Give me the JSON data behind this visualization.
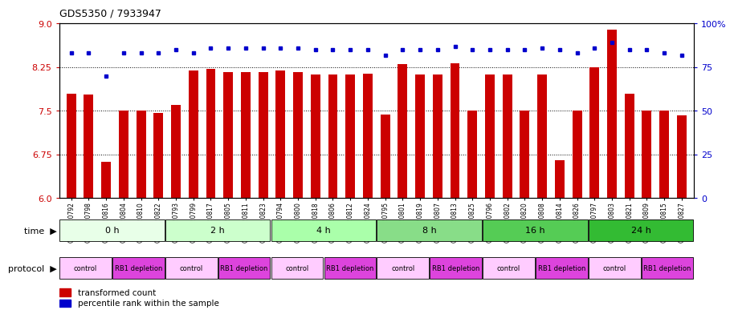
{
  "title": "GDS5350 / 7933947",
  "samples": [
    "GSM1220792",
    "GSM1220798",
    "GSM1220816",
    "GSM1220804",
    "GSM1220810",
    "GSM1220822",
    "GSM1220793",
    "GSM1220799",
    "GSM1220817",
    "GSM1220805",
    "GSM1220811",
    "GSM1220823",
    "GSM1220794",
    "GSM1220800",
    "GSM1220818",
    "GSM1220806",
    "GSM1220812",
    "GSM1220824",
    "GSM1220795",
    "GSM1220801",
    "GSM1220819",
    "GSM1220807",
    "GSM1220813",
    "GSM1220825",
    "GSM1220796",
    "GSM1220802",
    "GSM1220820",
    "GSM1220808",
    "GSM1220814",
    "GSM1220826",
    "GSM1220797",
    "GSM1220803",
    "GSM1220821",
    "GSM1220809",
    "GSM1220815",
    "GSM1220827"
  ],
  "bar_values": [
    7.8,
    7.78,
    6.63,
    7.5,
    7.5,
    7.47,
    7.6,
    8.19,
    8.22,
    8.17,
    8.17,
    8.17,
    8.19,
    8.16,
    8.12,
    8.12,
    8.12,
    8.14,
    7.44,
    8.3,
    8.12,
    8.12,
    8.32,
    7.5,
    8.12,
    8.12,
    7.5,
    8.12,
    6.65,
    7.5,
    8.25,
    8.9,
    7.8,
    7.5,
    7.5,
    7.42
  ],
  "percentile_values": [
    83,
    83,
    70,
    83,
    83,
    83,
    85,
    83,
    86,
    86,
    86,
    86,
    86,
    86,
    85,
    85,
    85,
    85,
    82,
    85,
    85,
    85,
    87,
    85,
    85,
    85,
    85,
    86,
    85,
    83,
    86,
    89,
    85,
    85,
    83,
    82
  ],
  "time_groups": [
    {
      "label": "0 h",
      "start": 0,
      "end": 6,
      "color": "#e8ffe8"
    },
    {
      "label": "2 h",
      "start": 6,
      "end": 12,
      "color": "#ccffcc"
    },
    {
      "label": "4 h",
      "start": 12,
      "end": 18,
      "color": "#aaffaa"
    },
    {
      "label": "8 h",
      "start": 18,
      "end": 24,
      "color": "#88dd88"
    },
    {
      "label": "16 h",
      "start": 24,
      "end": 30,
      "color": "#55cc55"
    },
    {
      "label": "24 h",
      "start": 30,
      "end": 36,
      "color": "#33bb33"
    }
  ],
  "protocol_groups": [
    {
      "label": "control",
      "start": 0,
      "end": 3
    },
    {
      "label": "RB1 depletion",
      "start": 3,
      "end": 6
    },
    {
      "label": "control",
      "start": 6,
      "end": 9
    },
    {
      "label": "RB1 depletion",
      "start": 9,
      "end": 12
    },
    {
      "label": "control",
      "start": 12,
      "end": 15
    },
    {
      "label": "RB1 depletion",
      "start": 15,
      "end": 18
    },
    {
      "label": "control",
      "start": 18,
      "end": 21
    },
    {
      "label": "RB1 depletion",
      "start": 21,
      "end": 24
    },
    {
      "label": "control",
      "start": 24,
      "end": 27
    },
    {
      "label": "RB1 depletion",
      "start": 27,
      "end": 30
    },
    {
      "label": "control",
      "start": 30,
      "end": 33
    },
    {
      "label": "RB1 depletion",
      "start": 33,
      "end": 36
    }
  ],
  "ylim_left": [
    6.0,
    9.0
  ],
  "ylim_right": [
    0,
    100
  ],
  "yticks_left": [
    6.0,
    6.75,
    7.5,
    8.25,
    9.0
  ],
  "yticks_right": [
    0,
    25,
    50,
    75,
    100
  ],
  "ytick_labels_right": [
    "0",
    "25",
    "50",
    "75",
    "100%"
  ],
  "bar_color": "#cc0000",
  "dot_color": "#0000cc",
  "control_color": "#ffccff",
  "depletion_color": "#dd44dd",
  "background_color": "#ffffff"
}
